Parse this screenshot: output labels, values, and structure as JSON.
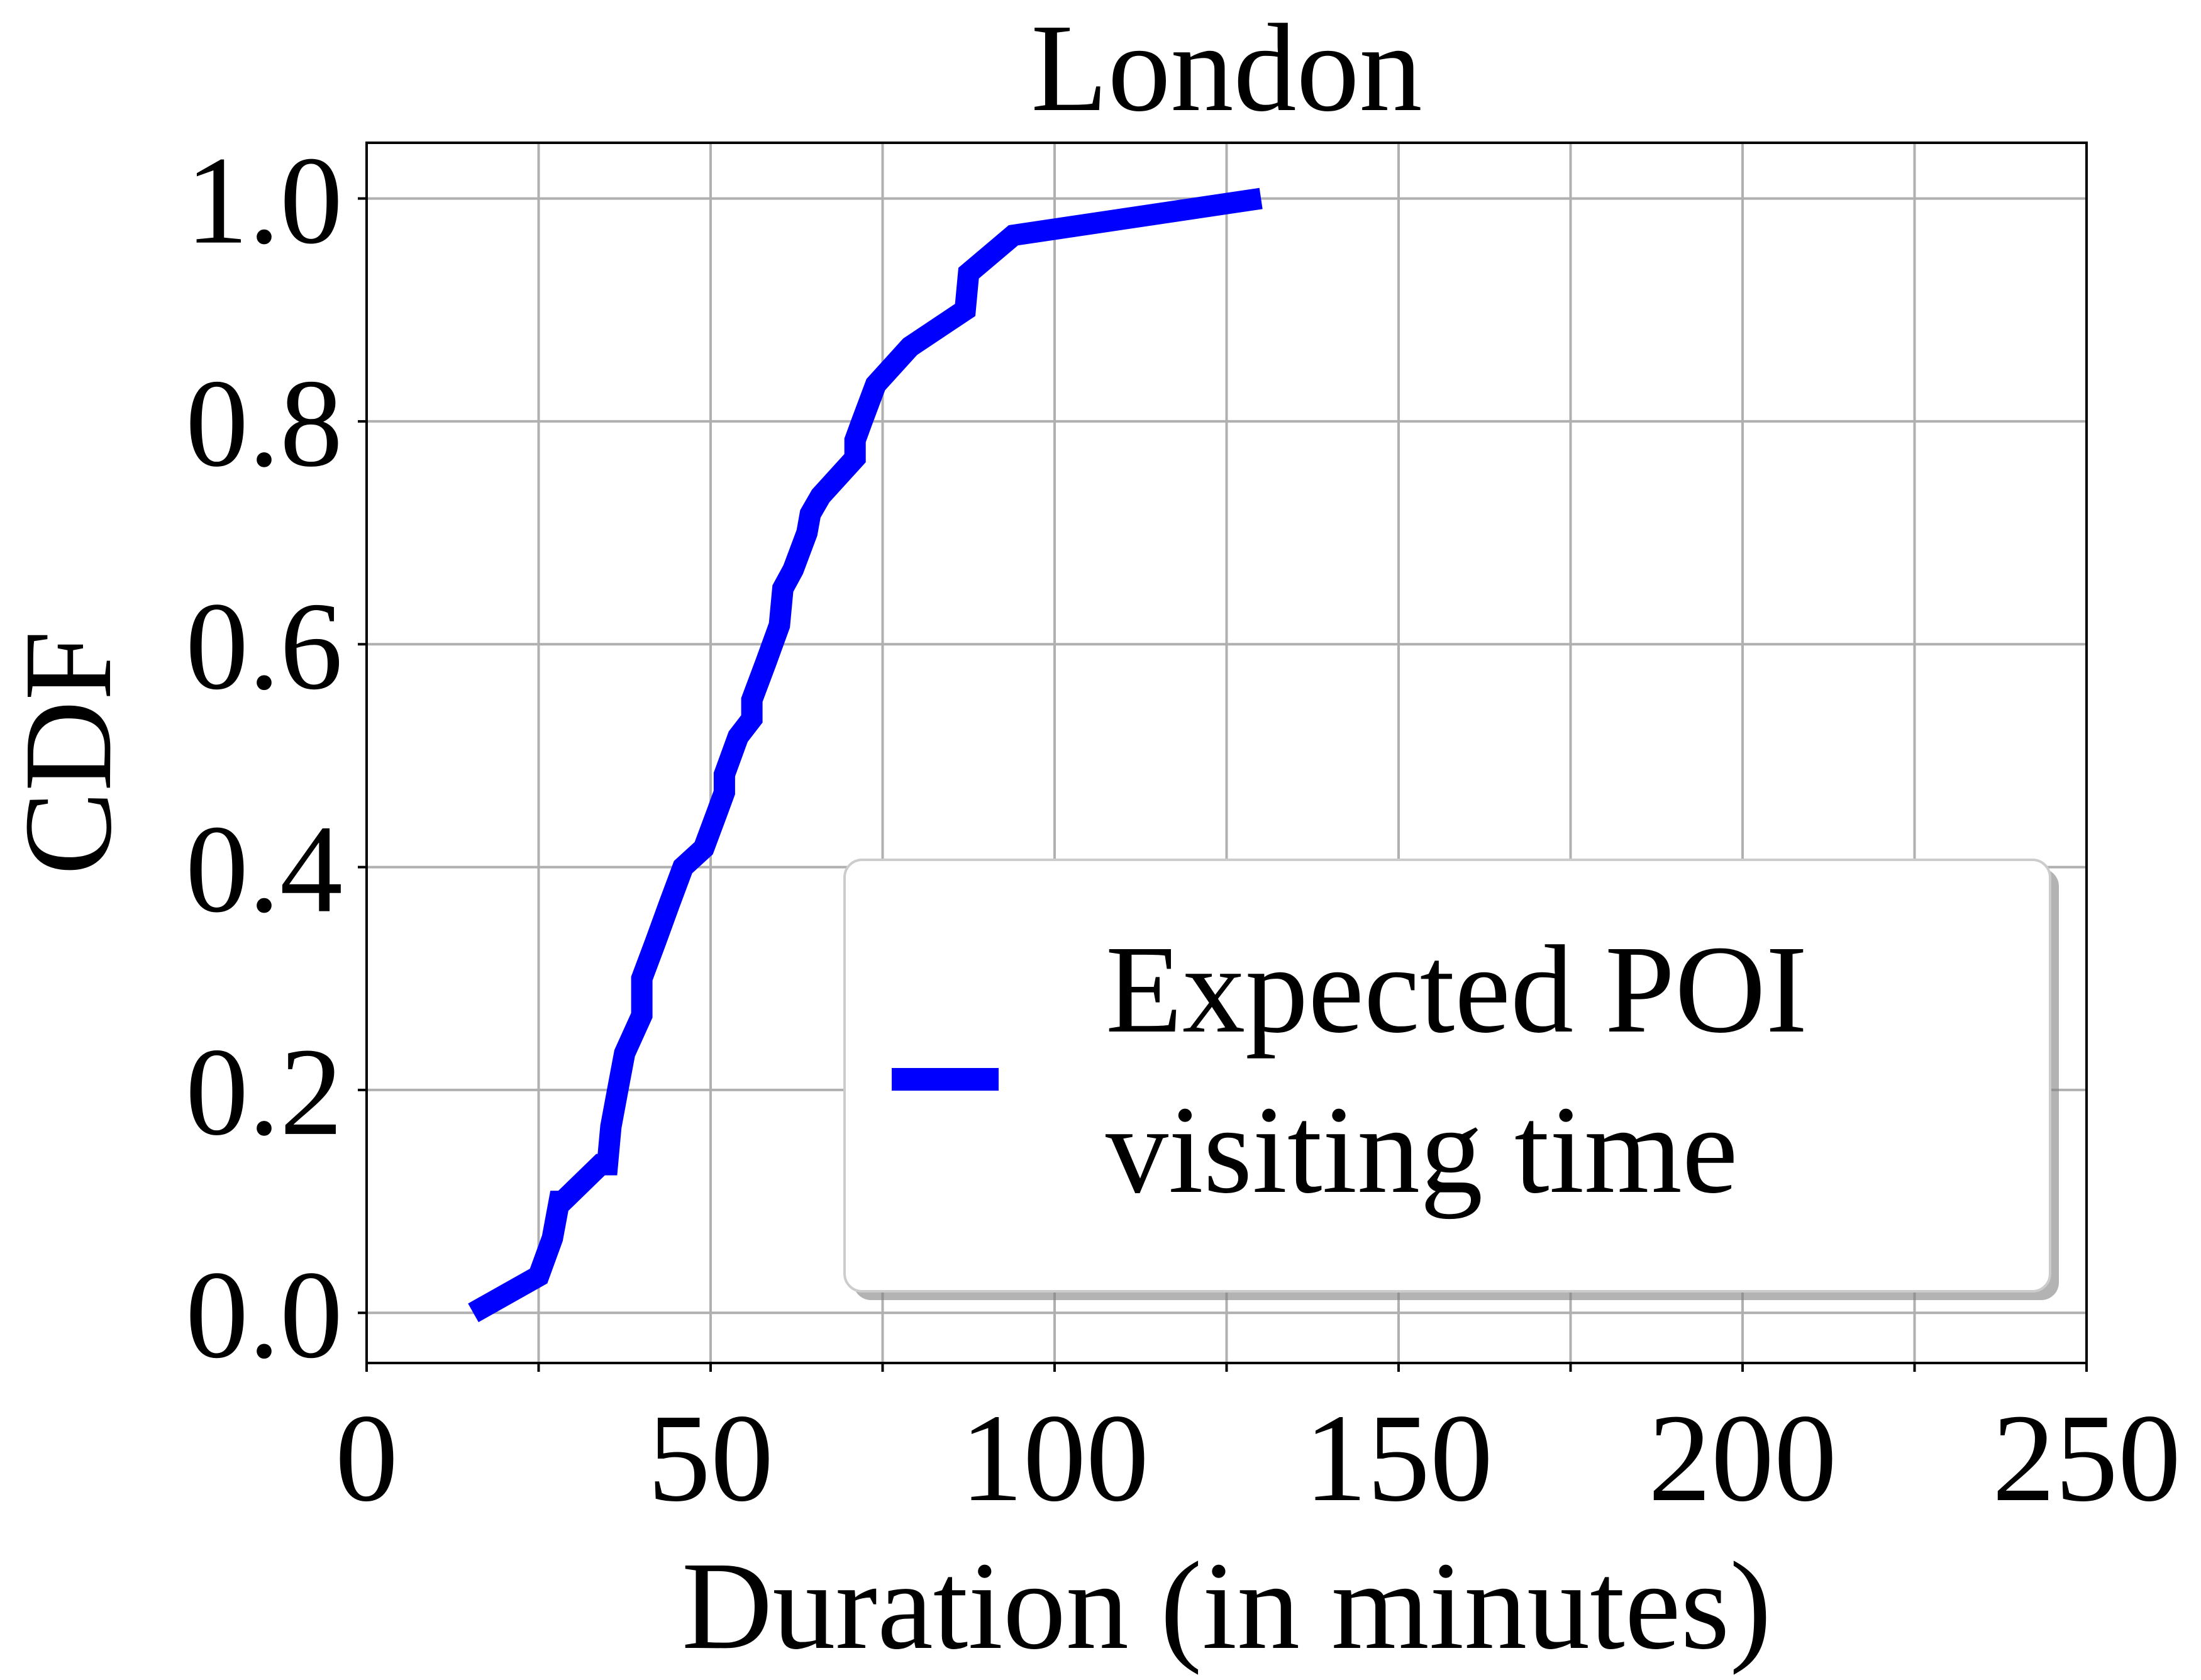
{
  "chart_data": {
    "type": "line",
    "title": "London",
    "xlabel": "Duration (in minutes)",
    "ylabel": "CDF",
    "xlim": [
      0,
      250
    ],
    "ylim": [
      -0.045,
      1.05
    ],
    "xticks": [
      0,
      50,
      100,
      150,
      200,
      250
    ],
    "xtick_labels": [
      "0",
      "50",
      "100",
      "150",
      "200",
      "250"
    ],
    "yticks": [
      0.0,
      0.2,
      0.4,
      0.6,
      0.8,
      1.0
    ],
    "ytick_labels": [
      "0.0",
      "0.2",
      "0.4",
      "0.6",
      "0.8",
      "1.0"
    ],
    "grid": true,
    "legend_position": "lower-right",
    "series": [
      {
        "name": "Expected POI visiting time",
        "color": "#0000ff",
        "x": [
          15.5,
          25,
          27,
          28,
          28.5,
          34,
          35,
          35.5,
          36.5,
          37.5,
          40,
          40,
          42,
          44,
          46,
          49,
          51,
          52,
          52,
          54,
          56,
          56,
          58,
          60,
          60.5,
          62,
          64,
          64.5,
          66,
          71,
          71,
          72,
          74,
          79,
          87,
          87.5,
          94,
          130
        ],
        "y": [
          0.0,
          0.033,
          0.067,
          0.1,
          0.1,
          0.133,
          0.133,
          0.167,
          0.2,
          0.233,
          0.267,
          0.3,
          0.333,
          0.367,
          0.4,
          0.417,
          0.45,
          0.467,
          0.483,
          0.517,
          0.533,
          0.55,
          0.583,
          0.617,
          0.65,
          0.667,
          0.7,
          0.717,
          0.733,
          0.767,
          0.783,
          0.8,
          0.833,
          0.867,
          0.9,
          0.933,
          0.967,
          1.0
        ]
      }
    ]
  }
}
